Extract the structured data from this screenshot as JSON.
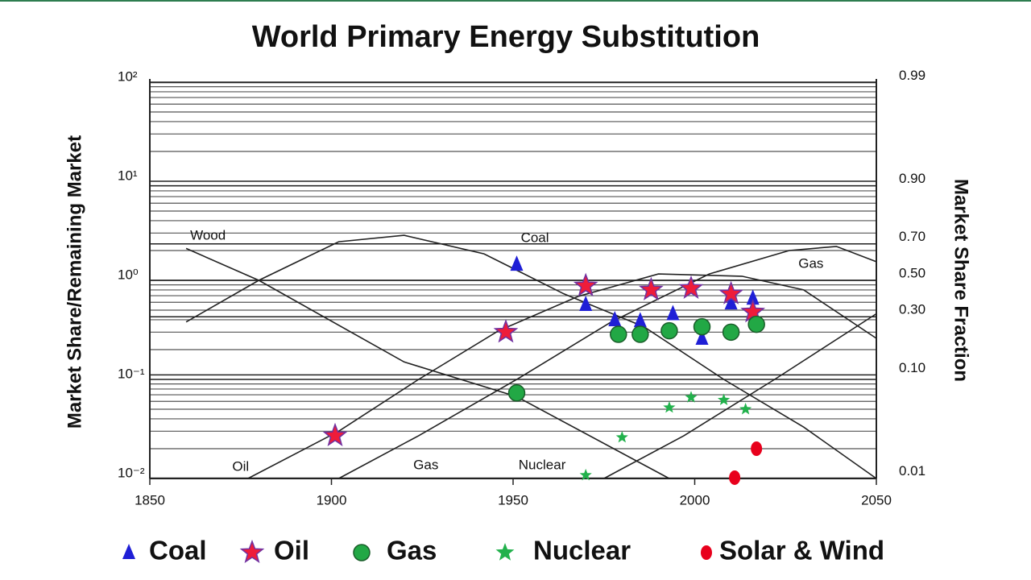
{
  "chart_data": {
    "type": "scatter",
    "title": "World Primary Energy Substitution",
    "y_label": "Market Share/Remaining Market",
    "y2_label": "Market Share Fraction",
    "xlim": [
      1850,
      2050
    ],
    "xticks": [
      1850,
      1900,
      1950,
      2000,
      2050
    ],
    "ylim": [
      0.01,
      100
    ],
    "log_y": true,
    "yticks": [
      {
        "value": 100,
        "label": "10²"
      },
      {
        "value": 10,
        "label": "10¹"
      },
      {
        "value": 1,
        "label": "10⁰"
      },
      {
        "value": 0.1,
        "label": "10⁻¹"
      },
      {
        "value": 0.01,
        "label": "10⁻²"
      }
    ],
    "y2scale": "logit",
    "y2lim": [
      0.0099,
      0.9901
    ],
    "y2ticks": [
      0.99,
      {
        "value": 0.9,
        "label": "0.90"
      },
      {
        "value": 0.7,
        "label": "0.70"
      },
      {
        "value": 0.5,
        "label": "0.50"
      },
      {
        "value": 0.3,
        "label": "0.30"
      },
      {
        "value": 0.1,
        "label": "0.10"
      },
      0.01
    ],
    "grid": true,
    "minor_grid": true,
    "series": [
      {
        "name": "Coal",
        "color": "#1f1fd6",
        "marker": "triangle",
        "x": [
          1951,
          1970,
          1978,
          1985,
          1994,
          2002,
          2010,
          2016
        ],
        "values": [
          1.45,
          0.57,
          0.4,
          0.39,
          0.46,
          0.26,
          0.59,
          0.66
        ]
      },
      {
        "name": "Oil",
        "color": "#ee1c3a",
        "marker": "star",
        "x": [
          1901,
          1948,
          1970,
          1988,
          1999,
          2010,
          2016
        ],
        "values": [
          0.027,
          0.3,
          0.88,
          0.8,
          0.83,
          0.73,
          0.48
        ]
      },
      {
        "name": "Gas",
        "color": "#22a845",
        "marker": "circle",
        "x": [
          1951,
          1979,
          1985,
          1993,
          2002,
          2010,
          2017
        ],
        "values": [
          0.073,
          0.285,
          0.285,
          0.31,
          0.34,
          0.3,
          0.36
        ]
      },
      {
        "name": "Nuclear",
        "color": "#22b14c",
        "marker": "smallstar",
        "x": [
          1970,
          1980,
          1993,
          1999,
          2008,
          2014
        ],
        "values": [
          0.0108,
          0.026,
          0.052,
          0.066,
          0.062,
          0.05
        ]
      },
      {
        "name": "Solar & Wind",
        "color": "#e8001c",
        "marker": "dot",
        "x": [
          2017,
          2011
        ],
        "values": [
          0.02,
          0.0102
        ]
      }
    ],
    "curves": [
      {
        "x": [
          1860,
          1880,
          1920,
          1951,
          1993
        ],
        "values": [
          2.1,
          1.0,
          0.15,
          0.067,
          0.01
        ]
      },
      {
        "x": [
          1860,
          1880,
          1902,
          1920,
          1942,
          1964,
          1986,
          2008,
          2030,
          2050
        ],
        "values": [
          0.38,
          1.0,
          2.45,
          2.85,
          1.85,
          0.73,
          0.34,
          0.1,
          0.033,
          0.01
        ]
      },
      {
        "x": [
          1877,
          1902,
          1924,
          1946,
          1968,
          1990,
          2013,
          2030,
          2050
        ],
        "values": [
          0.01,
          0.03,
          0.1,
          0.31,
          0.69,
          1.16,
          1.1,
          0.8,
          0.26
        ]
      },
      {
        "x": [
          1902,
          1924,
          1951,
          1977,
          2004,
          2026,
          2039,
          2050
        ],
        "values": [
          0.01,
          0.027,
          0.1,
          0.38,
          1.16,
          2.0,
          2.2,
          1.54
        ]
      },
      {
        "x": [
          1975,
          1997,
          2022,
          2050
        ],
        "values": [
          0.01,
          0.027,
          0.1,
          0.46
        ]
      }
    ],
    "annotations": [
      {
        "text": "Wood",
        "x": 1866,
        "y": 2.8
      },
      {
        "text": "Coal",
        "x": 1956,
        "y": 2.65
      },
      {
        "text": "Oil",
        "x": 1875,
        "y": 0.013
      },
      {
        "text": "Gas",
        "x": 1926,
        "y": 0.0135
      },
      {
        "text": "Nuclear",
        "x": 1958,
        "y": 0.0135
      },
      {
        "text": "Gas",
        "x": 2032,
        "y": 1.45
      }
    ]
  }
}
